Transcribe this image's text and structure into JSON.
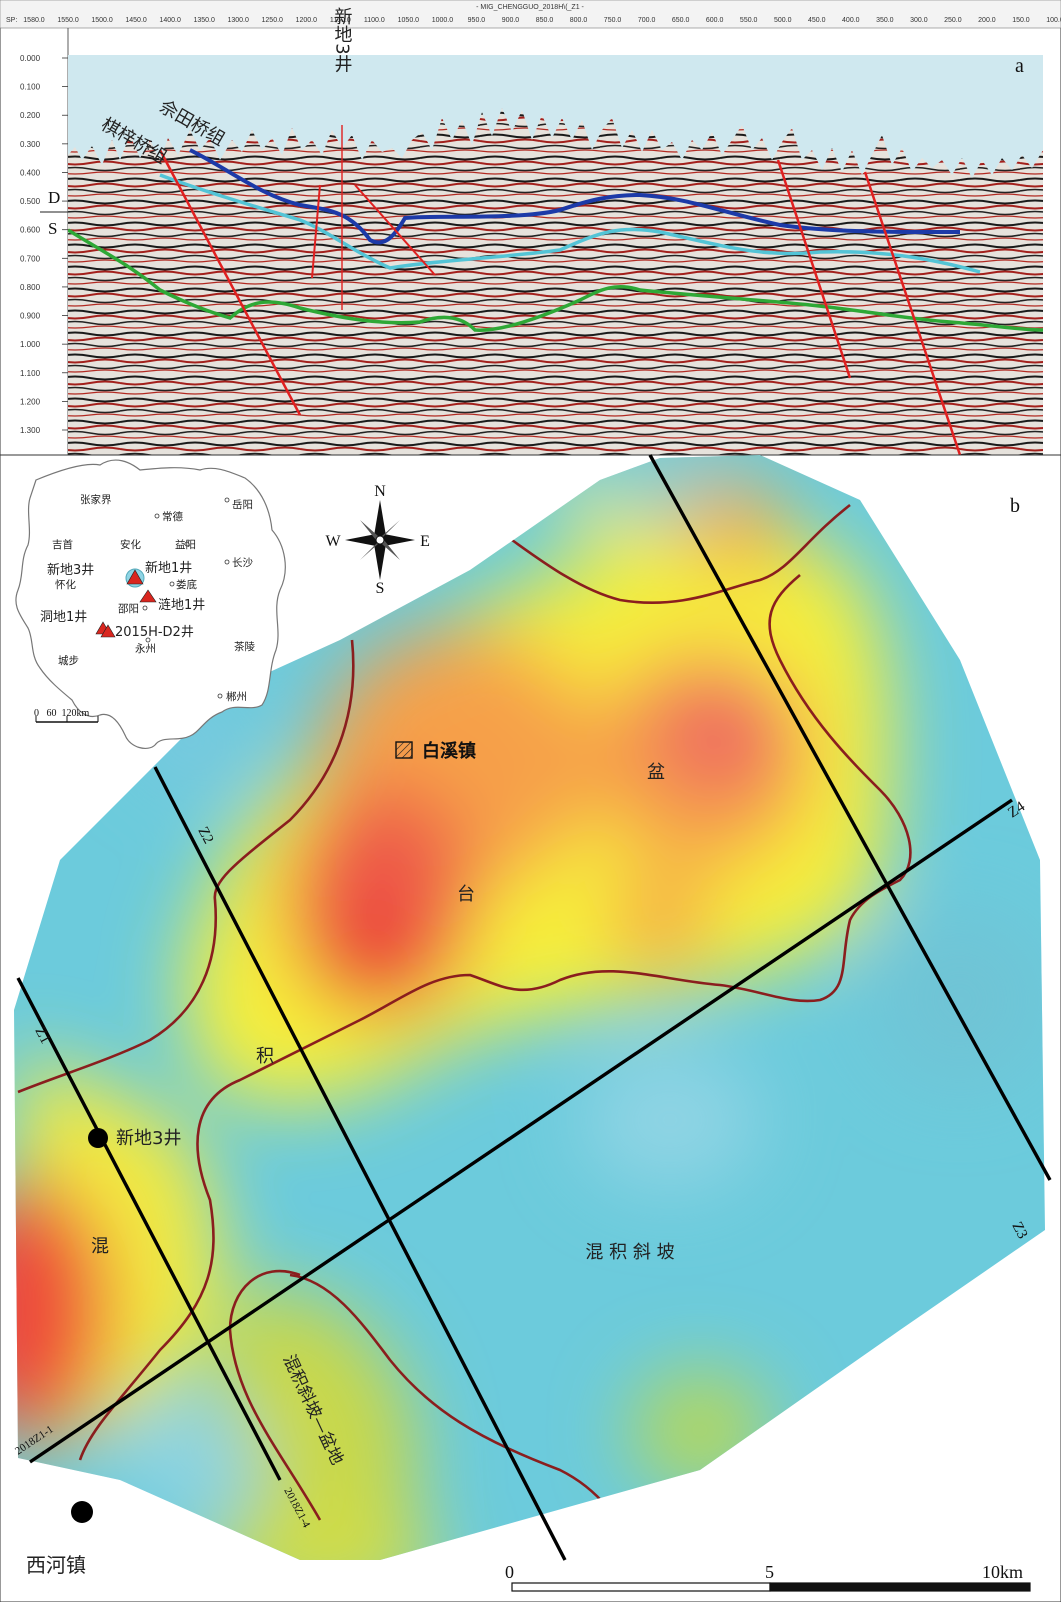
{
  "panel_a": {
    "label": "a",
    "header_title": "- MIG_CHENGGUO_2018H\\(_Z1 -",
    "sp_prefix": "SP:",
    "sp_ticks": [
      "1580.0",
      "1550.0",
      "1500.0",
      "1450.0",
      "1400.0",
      "1350.0",
      "1300.0",
      "1250.0",
      "1200.0",
      "1150.0",
      "1100.0",
      "1050.0",
      "1000.0",
      "950.0",
      "900.0",
      "850.0",
      "800.0",
      "750.0",
      "700.0",
      "650.0",
      "600.0",
      "550.0",
      "500.0",
      "450.0",
      "400.0",
      "350.0",
      "300.0",
      "250.0",
      "200.0",
      "150.0",
      "100.0"
    ],
    "time_ticks": [
      "0.000",
      "0.100",
      "0.200",
      "0.300",
      "0.400",
      "0.500",
      "0.600",
      "0.700",
      "0.800",
      "0.900",
      "1.000",
      "1.100",
      "1.200",
      "1.300"
    ],
    "boundary_top": "D",
    "boundary_bottom": "S",
    "well_label": "新地3井",
    "formation_1": "佘田桥组",
    "formation_2": "棋梓桥组",
    "colors": {
      "sky": "#cfe8ef",
      "blue_horizon": "#1c3aa8",
      "cyan_horizon": "#53c4d6",
      "green_horizon": "#2ea836",
      "fault": "#e02020"
    }
  },
  "panel_b": {
    "label": "b",
    "north": "N",
    "south": "S",
    "east": "E",
    "west": "W",
    "inset_cities": [
      "张家界",
      "常德",
      "岳阳",
      "吉首",
      "安化",
      "益阳",
      "长沙",
      "怀化",
      "娄底",
      "邵阳",
      "永州",
      "城步",
      "茶陵",
      "郴州"
    ],
    "inset_wells": [
      "新地3井",
      "新地1井",
      "涟地1井",
      "洞地1井",
      "2015H-D2井"
    ],
    "inset_scale": "0   60  120km",
    "town_label": "白溪镇",
    "zone_pen": "盆",
    "zone_tai": "台",
    "zone_ji": "积",
    "zone_hun": "混",
    "zone_slope": "混 积 斜 坡",
    "zone_slope_basin": "混积斜坡—盆地",
    "well_xd3": "新地3井",
    "town_xihe": "西河镇",
    "line_labels": [
      "Z1",
      "Z2",
      "Z3",
      "Z4"
    ],
    "rotated_labels": [
      "2018Z1-1",
      "2018Z1-4"
    ],
    "scale_labels": [
      "0",
      "5",
      "10km"
    ],
    "colors": {
      "red": "#ee4a3a",
      "yellow": "#f6ef3a",
      "cyan": "#6ccbdc",
      "contour": "#8a1e1e"
    }
  }
}
